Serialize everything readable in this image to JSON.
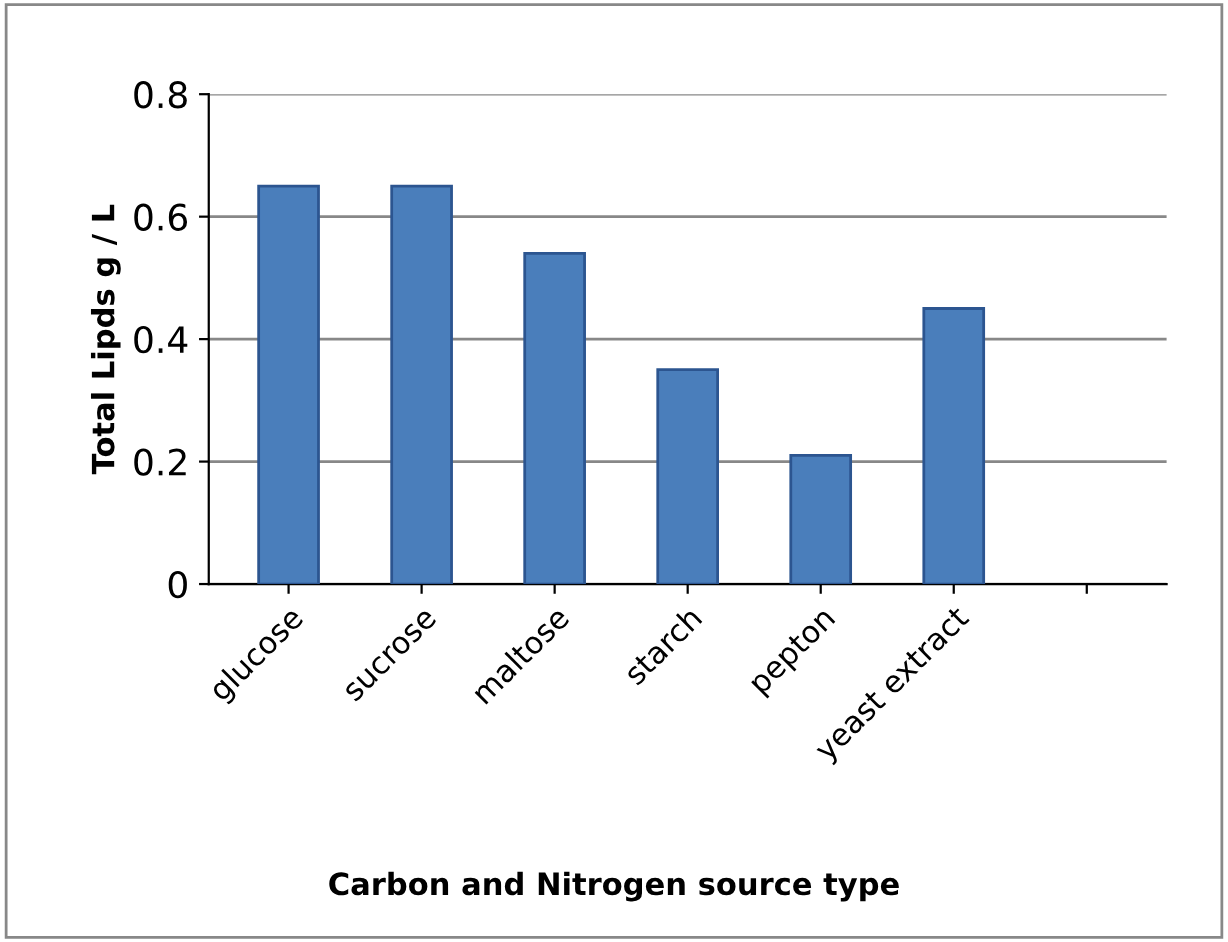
{
  "chart_data": {
    "type": "bar",
    "xlabel": "Carbon and Nitrogen source type",
    "ylabel": "Total Lipds g / L",
    "categories": [
      "glucose",
      "sucrose",
      "maltose",
      "starch",
      "pepton",
      "yeast extract",
      null
    ],
    "values": [
      0.65,
      0.65,
      0.54,
      0.35,
      0.21,
      0.45,
      null
    ],
    "color": "#4a7ebb",
    "ylim": [
      0,
      0.8
    ],
    "yticks": [
      0,
      0.2,
      0.4,
      0.6,
      0.8
    ],
    "grid": "y"
  }
}
